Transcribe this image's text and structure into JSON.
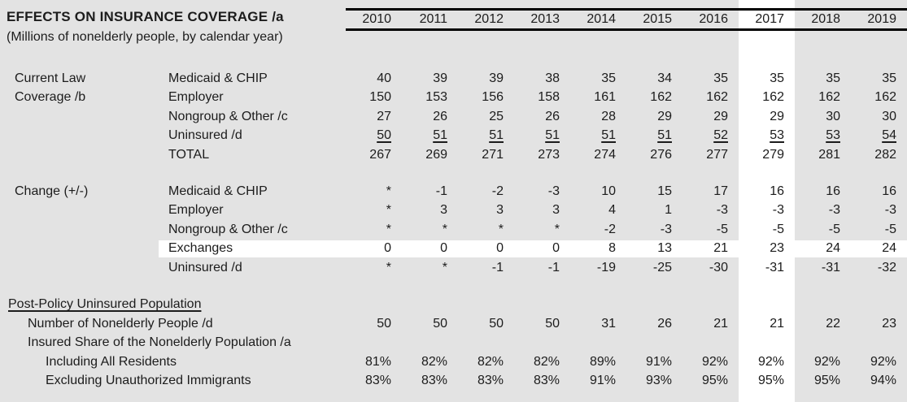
{
  "page": {
    "title": "EFFECTS ON INSURANCE COVERAGE /a",
    "subtitle": "(Millions of nonelderly people, by calendar year)"
  },
  "colors": {
    "background": "#e3e3e3",
    "highlight": "#ffffff",
    "text": "#1c1c1c",
    "rule": "#000000"
  },
  "years": [
    "2010",
    "2011",
    "2012",
    "2013",
    "2014",
    "2015",
    "2016",
    "2017",
    "2018",
    "2019"
  ],
  "highlight_year": "2017",
  "sections": [
    {
      "name": "current-law-coverage",
      "group_label_lines": [
        "Current Law",
        "Coverage /b"
      ],
      "rows": [
        {
          "label": "Medicaid & CHIP",
          "values": [
            "40",
            "39",
            "39",
            "38",
            "35",
            "34",
            "35",
            "35",
            "35",
            "35"
          ]
        },
        {
          "label": "Employer",
          "values": [
            "150",
            "153",
            "156",
            "158",
            "161",
            "162",
            "162",
            "162",
            "162",
            "162"
          ]
        },
        {
          "label": "Nongroup & Other /c",
          "values": [
            "27",
            "26",
            "25",
            "26",
            "28",
            "29",
            "29",
            "29",
            "30",
            "30"
          ]
        },
        {
          "label": "Uninsured /d",
          "underline_values": true,
          "values": [
            "50",
            "51",
            "51",
            "51",
            "51",
            "51",
            "52",
            "53",
            "53",
            "54"
          ]
        },
        {
          "label": "TOTAL",
          "values": [
            "267",
            "269",
            "271",
            "273",
            "274",
            "276",
            "277",
            "279",
            "281",
            "282"
          ]
        }
      ]
    },
    {
      "name": "change",
      "group_label_lines": [
        "Change (+/-)"
      ],
      "rows": [
        {
          "label": "Medicaid & CHIP",
          "values": [
            "*",
            "-1",
            "-2",
            "-3",
            "10",
            "15",
            "17",
            "16",
            "16",
            "16"
          ]
        },
        {
          "label": "Employer",
          "values": [
            "*",
            "3",
            "3",
            "3",
            "4",
            "1",
            "-3",
            "-3",
            "-3",
            "-3"
          ]
        },
        {
          "label": "Nongroup & Other /c",
          "values": [
            "*",
            "*",
            "*",
            "*",
            "-2",
            "-3",
            "-5",
            "-5",
            "-5",
            "-5"
          ]
        },
        {
          "label": "Exchanges",
          "highlight_row": true,
          "values": [
            "0",
            "0",
            "0",
            "0",
            "8",
            "13",
            "21",
            "23",
            "24",
            "24"
          ]
        },
        {
          "label": "Uninsured /d",
          "values": [
            "*",
            "*",
            "-1",
            "-1",
            "-19",
            "-25",
            "-30",
            "-31",
            "-31",
            "-32"
          ]
        }
      ]
    }
  ],
  "post_policy": {
    "heading": "Post-Policy Uninsured Population",
    "rows": [
      {
        "label": "Number of Nonelderly People /d",
        "indent": 1,
        "values": [
          "50",
          "50",
          "50",
          "50",
          "31",
          "26",
          "21",
          "21",
          "22",
          "23"
        ]
      },
      {
        "label": "Insured Share of the Nonelderly Population /a",
        "indent": 1,
        "values": [
          "",
          "",
          "",
          "",
          "",
          "",
          "",
          "",
          "",
          ""
        ]
      },
      {
        "label": "Including All Residents",
        "indent": 2,
        "values": [
          "81%",
          "82%",
          "82%",
          "82%",
          "89%",
          "91%",
          "92%",
          "92%",
          "92%",
          "92%"
        ]
      },
      {
        "label": "Excluding Unauthorized Immigrants",
        "indent": 2,
        "values": [
          "83%",
          "83%",
          "83%",
          "83%",
          "91%",
          "93%",
          "95%",
          "95%",
          "95%",
          "94%"
        ]
      }
    ]
  }
}
